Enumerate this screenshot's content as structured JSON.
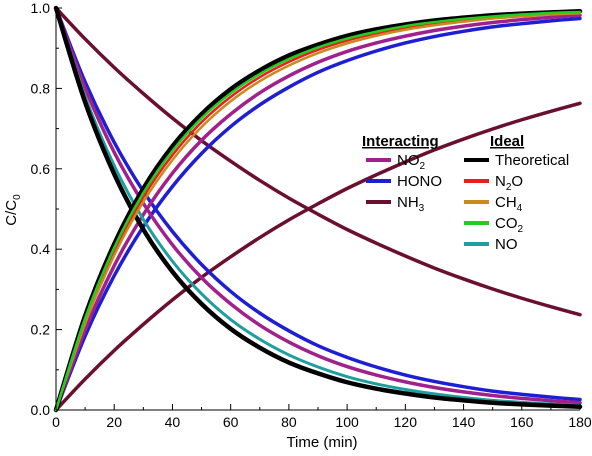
{
  "chart_data": {
    "type": "line",
    "xlabel": "Time (min)",
    "ylabel": "C/C",
    "ylabel_sub": "0",
    "xlim": [
      0,
      180
    ],
    "ylim": [
      0,
      1.0
    ],
    "x_ticks": [
      "0",
      "20",
      "40",
      "60",
      "80",
      "100",
      "120",
      "140",
      "160",
      "180"
    ],
    "y_ticks": [
      "0.0",
      "0.2",
      "0.4",
      "0.6",
      "0.8",
      "1.0"
    ],
    "x_tick_values": [
      0,
      20,
      40,
      60,
      80,
      100,
      120,
      140,
      160,
      180
    ],
    "y_tick_values": [
      0.0,
      0.2,
      0.4,
      0.6,
      0.8,
      1.0
    ],
    "x": [
      0,
      10,
      20,
      30,
      40,
      50,
      60,
      70,
      80,
      90,
      100,
      110,
      120,
      130,
      140,
      150,
      160,
      170,
      180
    ],
    "legend": {
      "interacting_title": "Interacting",
      "ideal_title": "Ideal",
      "interacting": [
        {
          "base": "NO",
          "sub": "2",
          "after": "",
          "color": "#a0208c"
        },
        {
          "base": "HONO",
          "sub": "",
          "after": "",
          "color": "#1e1ed2"
        },
        {
          "base": "NH",
          "sub": "3",
          "after": "",
          "color": "#6b0f2e"
        }
      ],
      "ideal": [
        {
          "base": "Theoretical",
          "sub": "",
          "after": "",
          "color": "#000000"
        },
        {
          "base": "N",
          "sub": "2",
          "after": "O",
          "color": "#ee1c1c"
        },
        {
          "base": "CH",
          "sub": "4",
          "after": "",
          "color": "#c98a1e"
        },
        {
          "base": "CO",
          "sub": "2",
          "after": "",
          "color": "#22cc22"
        },
        {
          "base": "NO",
          "sub": "",
          "after": "",
          "color": "#1e9e9e"
        }
      ]
    },
    "series": [
      {
        "color": "#6b0f2e",
        "width": 3.5,
        "values": [
          1.0,
          0.923,
          0.852,
          0.787,
          0.726,
          0.67,
          0.619,
          0.571,
          0.527,
          0.487,
          0.449,
          0.415,
          0.383,
          0.353,
          0.326,
          0.301,
          0.278,
          0.257,
          0.237
        ]
      },
      {
        "color": "#6b0f2e",
        "width": 3.5,
        "values": [
          0.0,
          0.077,
          0.148,
          0.213,
          0.274,
          0.33,
          0.381,
          0.429,
          0.473,
          0.513,
          0.551,
          0.585,
          0.617,
          0.647,
          0.674,
          0.699,
          0.722,
          0.743,
          0.763
        ]
      },
      {
        "color": "#1e1ed2",
        "width": 3.5,
        "values": [
          1.0,
          0.816,
          0.666,
          0.544,
          0.444,
          0.362,
          0.295,
          0.241,
          0.197,
          0.16,
          0.131,
          0.107,
          0.087,
          0.071,
          0.058,
          0.047,
          0.039,
          0.032,
          0.026
        ]
      },
      {
        "color": "#1e1ed2",
        "width": 3.5,
        "values": [
          0.0,
          0.184,
          0.334,
          0.456,
          0.556,
          0.638,
          0.705,
          0.759,
          0.803,
          0.84,
          0.869,
          0.893,
          0.913,
          0.929,
          0.942,
          0.953,
          0.961,
          0.968,
          0.974
        ]
      },
      {
        "color": "#a0208c",
        "width": 3.5,
        "values": [
          1.0,
          0.801,
          0.641,
          0.514,
          0.411,
          0.329,
          0.264,
          0.211,
          0.169,
          0.135,
          0.108,
          0.087,
          0.07,
          0.056,
          0.045,
          0.036,
          0.029,
          0.023,
          0.018
        ]
      },
      {
        "color": "#a0208c",
        "width": 3.5,
        "values": [
          0.0,
          0.199,
          0.359,
          0.486,
          0.589,
          0.671,
          0.736,
          0.789,
          0.831,
          0.865,
          0.892,
          0.913,
          0.93,
          0.944,
          0.955,
          0.964,
          0.971,
          0.977,
          0.982
        ]
      },
      {
        "color": "#1e9e9e",
        "width": 3,
        "values": [
          1.0,
          0.78,
          0.608,
          0.474,
          0.37,
          0.289,
          0.225,
          0.176,
          0.137,
          0.107,
          0.083,
          0.065,
          0.051,
          0.04,
          0.031,
          0.024,
          0.019,
          0.015,
          0.011
        ]
      },
      {
        "color": "#000000",
        "width": 4.5,
        "values": [
          1.0,
          0.766,
          0.587,
          0.449,
          0.344,
          0.264,
          0.202,
          0.155,
          0.118,
          0.091,
          0.069,
          0.053,
          0.041,
          0.031,
          0.024,
          0.018,
          0.014,
          0.011,
          0.008
        ]
      },
      {
        "color": "#000000",
        "width": 4.5,
        "values": [
          0.0,
          0.234,
          0.413,
          0.551,
          0.656,
          0.736,
          0.798,
          0.845,
          0.882,
          0.909,
          0.931,
          0.947,
          0.959,
          0.969,
          0.976,
          0.982,
          0.986,
          0.989,
          0.992
        ]
      },
      {
        "color": "#ee1c1c",
        "width": 2.5,
        "values": [
          0.0,
          0.222,
          0.395,
          0.53,
          0.634,
          0.716,
          0.779,
          0.828,
          0.866,
          0.896,
          0.919,
          0.937,
          0.951,
          0.962,
          0.97,
          0.977,
          0.982,
          0.986,
          0.989
        ]
      },
      {
        "color": "#c98a1e",
        "width": 2.5,
        "values": [
          0.0,
          0.215,
          0.385,
          0.518,
          0.622,
          0.704,
          0.768,
          0.818,
          0.857,
          0.888,
          0.912,
          0.931,
          0.946,
          0.957,
          0.966,
          0.974,
          0.979,
          0.984,
          0.987
        ]
      },
      {
        "color": "#22cc22",
        "width": 2.5,
        "values": [
          0.0,
          0.228,
          0.404,
          0.54,
          0.645,
          0.726,
          0.788,
          0.836,
          0.873,
          0.902,
          0.924,
          0.941,
          0.955,
          0.965,
          0.973,
          0.979,
          0.984,
          0.988,
          0.99
        ]
      }
    ]
  }
}
